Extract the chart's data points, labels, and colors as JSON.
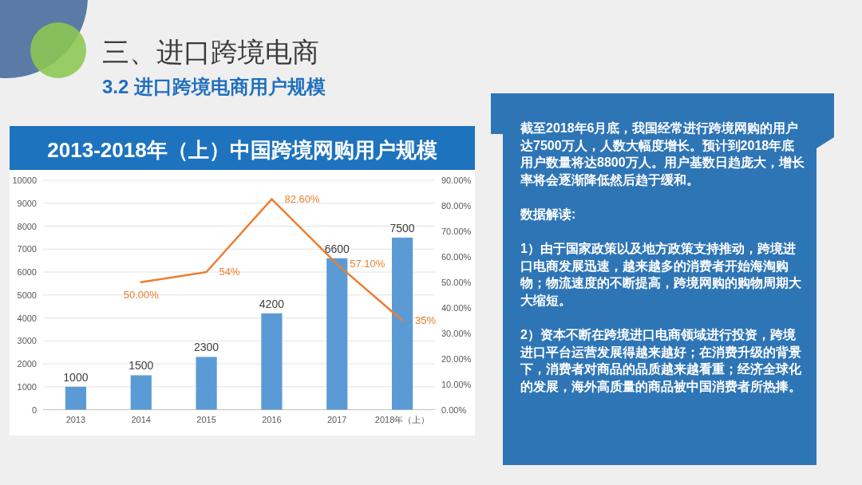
{
  "chart_data": {
    "type": "bar",
    "title": "2013-2018年（上）中国跨境网购用户规模",
    "categories": [
      "2013",
      "2014",
      "2015",
      "2016",
      "2017",
      "2018年（上）"
    ],
    "series": [
      {
        "color": "#5b9bd5",
        "values": [
          1000,
          1500,
          2300,
          4200,
          6600,
          7500
        ],
        "value_labels": [
          "1000",
          "1500",
          "2300",
          "4200",
          "6600",
          "7500"
        ]
      },
      {
        "type": "line",
        "axis": "y2",
        "color": "#ed7d31",
        "values": [
          null,
          50,
          54,
          82.6,
          57.1,
          35
        ],
        "value_labels": [
          null,
          "50.00%",
          "54%",
          "82.60%",
          "57.10%",
          "35%"
        ]
      }
    ],
    "ylim": [
      0,
      10000
    ],
    "yticks": [
      0,
      1000,
      2000,
      3000,
      4000,
      5000,
      6000,
      7000,
      8000,
      9000,
      10000
    ],
    "y2lim": [
      0,
      90
    ],
    "y2ticks": [
      {
        "value": 0,
        "label": "0.00%"
      },
      {
        "value": 10,
        "label": "10.00%"
      },
      {
        "value": 20,
        "label": "20.00%"
      },
      {
        "value": 30,
        "label": "30.00%"
      },
      {
        "value": 40,
        "label": "40.00%"
      },
      {
        "value": 50,
        "label": "50.00%"
      },
      {
        "value": 60,
        "label": "60.00%"
      },
      {
        "value": 70,
        "label": "70.00%"
      },
      {
        "value": 80,
        "label": "80.00%"
      },
      {
        "value": 90,
        "label": "90.00%"
      }
    ],
    "grid": "y",
    "annotations": [
      "三、进口跨境电商",
      "3.2 进口跨境电商用户规模",
      "截至2018年6月底，我国经常进行跨境网购的用户达7500万人，人数大幅度增长。预计到2018年底用户数量将达8800万人。用户基数日趋庞大，增长率将会逐渐降低然后趋于缓和。",
      "数据解读:",
      "1）由于国家政策以及地方政策支持推动，跨境进口电商发展迅速，越来越多的消费者开始海淘购物；物流速度的不断提高，跨境网购的购物周期大大缩短。",
      "2）资本不断在跨境进口电商领域进行投资，跨境进口平台运营发展得越来越好；在消费升级的背景下，消费者对商品的品质越来越看重；经济全球化的发展，海外高质量的商品被中国消费者所热捧。"
    ]
  }
}
